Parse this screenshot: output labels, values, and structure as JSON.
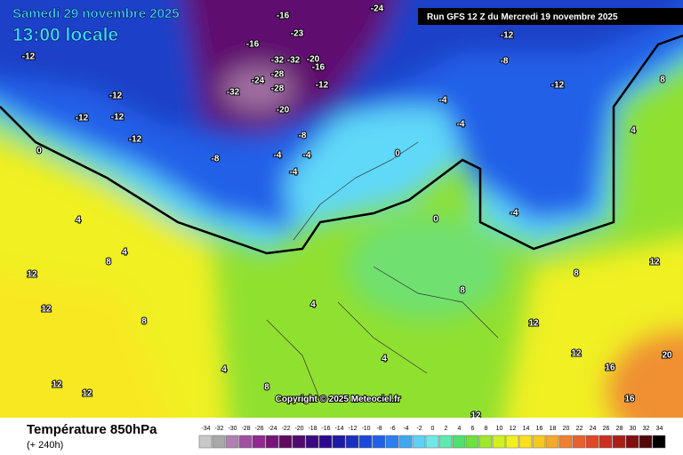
{
  "header": {
    "date": "Samedi 29 novembre 2025",
    "time": "13:00 locale",
    "run": "Run GFS 12 Z du Mercredi 19 novembre 2025"
  },
  "footer": {
    "title": "Température 850hPa",
    "lead": "(+ 240h)",
    "copyright": "Copyright © 2025 Meteociel.fr"
  },
  "scale": {
    "values": [
      -34,
      -32,
      -30,
      -28,
      -26,
      -24,
      -22,
      -20,
      -18,
      -16,
      -14,
      -12,
      -10,
      -8,
      -6,
      -4,
      -2,
      0,
      2,
      4,
      6,
      8,
      10,
      12,
      14,
      16,
      18,
      20,
      22,
      24,
      26,
      28,
      30,
      32,
      34
    ],
    "colors": [
      "#c8c8c8",
      "#a8a8a8",
      "#b080b0",
      "#a050a0",
      "#902890",
      "#781478",
      "#600a60",
      "#500a70",
      "#3c0a80",
      "#2a0a90",
      "#1e1aa8",
      "#1a30c0",
      "#1a48d8",
      "#2060e8",
      "#2a80f0",
      "#40a8f0",
      "#60d0f8",
      "#70e8e8",
      "#60e8b0",
      "#50e070",
      "#70e040",
      "#a0e830",
      "#d0f020",
      "#f0f020",
      "#f8e020",
      "#f8c820",
      "#f8a828",
      "#f08030",
      "#e86030",
      "#e04828",
      "#c83020",
      "#a82018",
      "#801010",
      "#500808",
      "#000000"
    ]
  },
  "map_labels": [
    -12,
    -12,
    -12,
    -12,
    -12,
    -8,
    -16,
    -23,
    -32,
    -32,
    -20,
    -16,
    -28,
    -28,
    -24,
    -32,
    -20,
    -12,
    -8,
    -4,
    -4,
    -4,
    -4,
    -4,
    -8,
    -12,
    -12,
    -4,
    0,
    0,
    0,
    4,
    4,
    8,
    12,
    12,
    8,
    4,
    4,
    8,
    4,
    8,
    12,
    12,
    16,
    16,
    20,
    12,
    12,
    12,
    8,
    12,
    8,
    4,
    -24,
    -16
  ]
}
